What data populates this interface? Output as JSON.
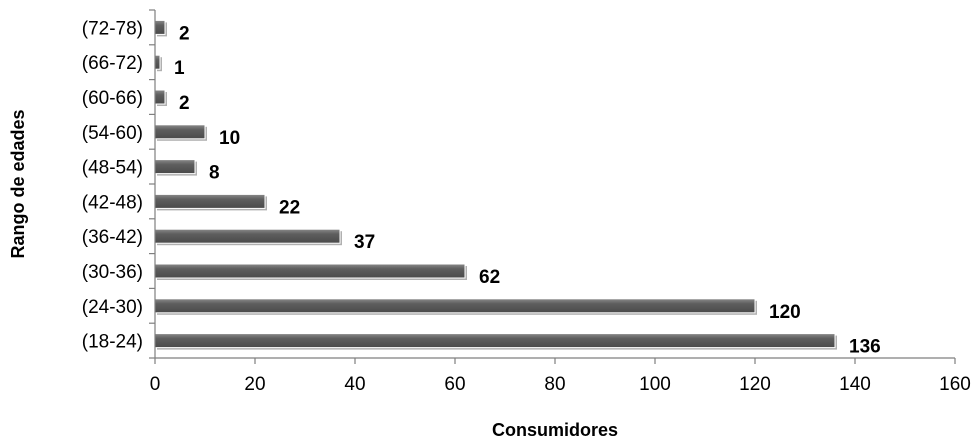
{
  "chart_data": {
    "type": "bar",
    "orientation": "horizontal",
    "categories": [
      "(18-24)",
      "(24-30)",
      "(30-36)",
      "(36-42)",
      "(42-48)",
      "(48-54)",
      "(54-60)",
      "(60-66)",
      "(66-72)",
      "(72-78)"
    ],
    "values": [
      136,
      120,
      62,
      37,
      22,
      8,
      10,
      2,
      1,
      2
    ],
    "title": "",
    "xlabel": "Consumidores",
    "ylabel": "Rango de edades",
    "xlim": [
      0,
      160
    ],
    "xticks": [
      0,
      20,
      40,
      60,
      80,
      100,
      120,
      140,
      160
    ],
    "grid": false,
    "legend": "none",
    "bar_color": "#595959",
    "bar_shadow_color": "#b0b0b0"
  }
}
